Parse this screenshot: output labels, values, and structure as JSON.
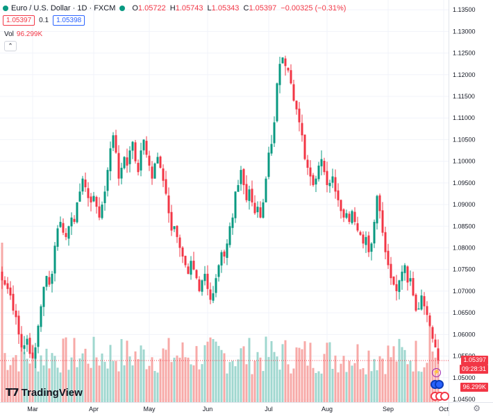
{
  "header": {
    "symbol": "Euro / U.S. Dollar · 1D · FXCM",
    "open_label": "O",
    "open": "1.05722",
    "high_label": "H",
    "high": "1.05743",
    "low_label": "L",
    "low": "1.05343",
    "close_label": "C",
    "close": "1.05397",
    "change": "−0.00325 (−0.31%)",
    "bid": "1.05397",
    "spread": "0.1",
    "ask": "1.05398"
  },
  "volume": {
    "label": "Vol",
    "value": "96.299K"
  },
  "last_price_badge": {
    "price": "1.05397",
    "countdown": "09:28:31"
  },
  "volume_badge": "96.299K",
  "brand": "TradingView",
  "colors": {
    "up": "#089981",
    "down": "#f23645",
    "vol_up": "#9fd7cf",
    "vol_down": "#f7a9a7",
    "grid": "#f0f3fa"
  },
  "icons": [
    "settings-icon",
    "lightning-icon",
    "event-icon",
    "flag-icon"
  ],
  "chart_data": {
    "type": "candlestick",
    "symbol": "EURUSD",
    "timeframe": "1D",
    "xlabel": "",
    "ylabel": "",
    "ylim": [
      1.045,
      1.1355
    ],
    "y_ticks": [
      1.045,
      1.05,
      1.055,
      1.06,
      1.065,
      1.07,
      1.075,
      1.08,
      1.085,
      1.09,
      1.095,
      1.1,
      1.105,
      1.11,
      1.115,
      1.12,
      1.125,
      1.13,
      1.135
    ],
    "y_tick_labels": [
      "1.04500",
      "1.05000",
      "1.05500",
      "1.06000",
      "1.06500",
      "1.07000",
      "1.07500",
      "1.08000",
      "1.08500",
      "1.09000",
      "1.09500",
      "1.10000",
      "1.10500",
      "1.11000",
      "1.11500",
      "1.12000",
      "1.12500",
      "1.13000",
      "1.13500"
    ],
    "x_tick_labels": [
      "Mar",
      "Apr",
      "May",
      "Jun",
      "Jul",
      "Aug",
      "Sep",
      "Oct"
    ],
    "x_tick_index": [
      11,
      33,
      53,
      74,
      96,
      117,
      139,
      159
    ],
    "closes": [
      1.0725,
      1.0715,
      1.0705,
      1.069,
      1.0655,
      1.064,
      1.06,
      1.057,
      1.0575,
      1.059,
      1.0555,
      1.0545,
      1.057,
      1.062,
      1.0665,
      1.071,
      1.0735,
      1.0715,
      1.074,
      1.0805,
      1.0845,
      1.086,
      1.0835,
      1.0825,
      1.085,
      1.087,
      1.086,
      1.0905,
      1.093,
      1.096,
      1.094,
      1.0915,
      1.0905,
      1.092,
      1.0895,
      1.087,
      1.09,
      1.093,
      1.098,
      1.103,
      1.106,
      1.102,
      1.096,
      1.0985,
      1.101,
      1.099,
      1.1025,
      1.1045,
      1.1,
      1.0975,
      1.1025,
      1.105,
      1.1015,
      1.099,
      1.096,
      1.0995,
      1.101,
      1.0985,
      1.0955,
      1.0925,
      1.088,
      1.084,
      1.085,
      1.0825,
      1.08,
      1.078,
      1.076,
      1.074,
      1.077,
      1.075,
      1.073,
      1.07,
      1.0725,
      1.074,
      1.0705,
      1.068,
      1.0695,
      1.073,
      1.076,
      1.079,
      1.078,
      1.081,
      1.085,
      1.087,
      1.093,
      1.0945,
      1.098,
      1.0945,
      1.091,
      1.0935,
      1.0905,
      1.088,
      1.0895,
      1.087,
      1.0905,
      1.096,
      1.102,
      1.104,
      1.109,
      1.118,
      1.1225,
      1.124,
      1.122,
      1.121,
      1.118,
      1.114,
      1.112,
      1.109,
      1.106,
      1.1005,
      1.0985,
      1.0965,
      1.0945,
      1.096,
      1.099,
      1.1005,
      1.0975,
      1.0945,
      1.095,
      1.0965,
      1.093,
      1.091,
      1.0885,
      1.087,
      1.088,
      1.086,
      1.0885,
      1.086,
      1.084,
      1.083,
      1.081,
      1.0825,
      1.079,
      1.081,
      1.086,
      1.092,
      1.0885,
      1.0835,
      1.079,
      1.076,
      1.073,
      1.0715,
      1.07,
      1.0725,
      1.0745,
      1.076,
      1.072,
      1.073,
      1.069,
      1.0655,
      1.066,
      1.069,
      1.0665,
      1.0645,
      1.062,
      1.059,
      1.057,
      1.05397
    ],
    "volume_last": 96299
  }
}
